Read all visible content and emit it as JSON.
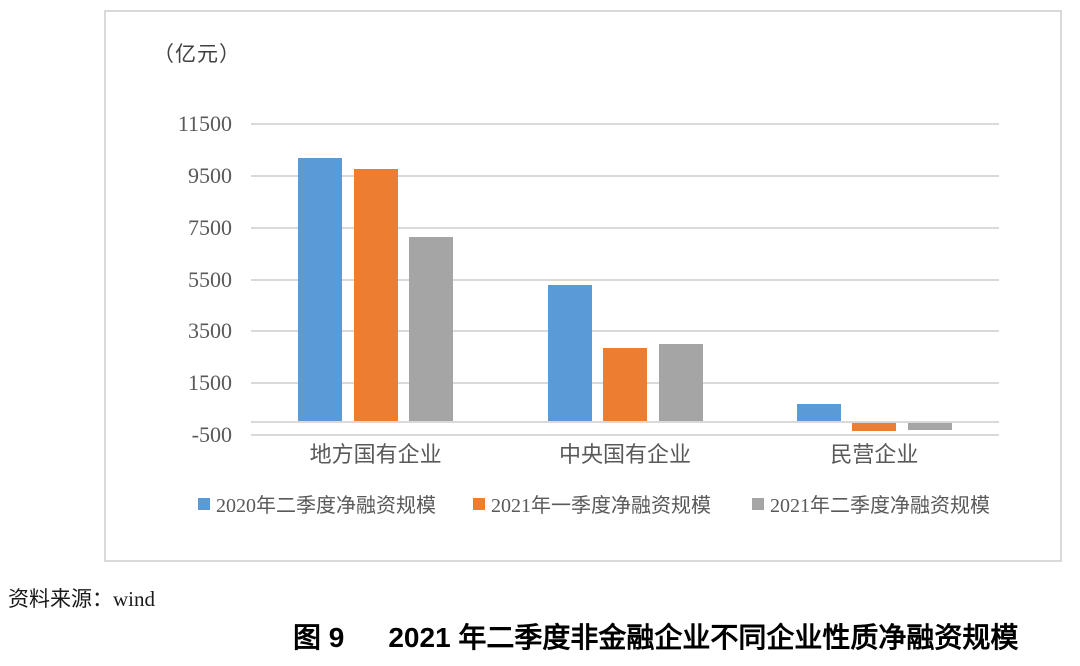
{
  "figure": {
    "source_label": "资料来源：wind",
    "caption_number": "图 9",
    "caption_title": "2021 年二季度非金融企业不同企业性质净融资规模"
  },
  "chart_data": {
    "type": "bar",
    "unit_label": "（亿元）",
    "categories": [
      "地方国有企业",
      "中央国有企业",
      "民营企业"
    ],
    "series": [
      {
        "name": "2020年二季度净融资规模",
        "color": "#5B9BD5",
        "values": [
          10200,
          5300,
          680
        ]
      },
      {
        "name": "2021年一季度净融资规模",
        "color": "#ED7D31",
        "values": [
          9760,
          2840,
          -360
        ]
      },
      {
        "name": "2021年二季度净融资规模",
        "color": "#A5A5A5",
        "values": [
          7140,
          3030,
          -310
        ]
      }
    ],
    "yticks": [
      11500,
      9500,
      7500,
      5500,
      3500,
      1500,
      -500
    ],
    "ylim": [
      -500,
      11500
    ],
    "grid": true,
    "legend_position": "bottom",
    "colors": {
      "grid": "#D9D9D9",
      "axis": "#D9D9D9",
      "tick_text": "#595959",
      "category_text": "#595959",
      "legend_text": "#595959"
    }
  }
}
